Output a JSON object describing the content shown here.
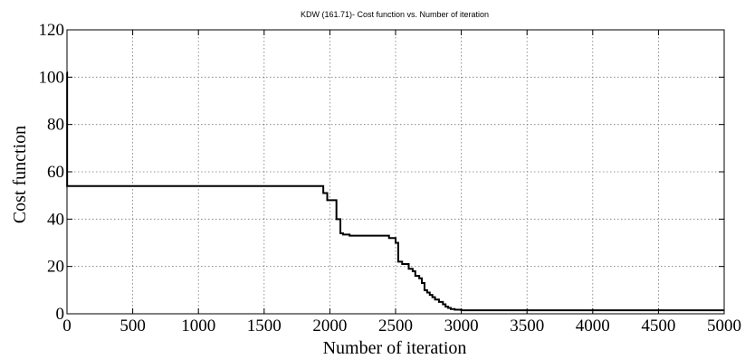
{
  "chart_data": {
    "type": "line",
    "title": "KDW (161.71)- Cost function vs. Number of iteration",
    "xlabel": "Number of iteration",
    "ylabel": "Cost function",
    "xlim": [
      0,
      5000
    ],
    "ylim": [
      0,
      120
    ],
    "xticks": [
      0,
      500,
      1000,
      1500,
      2000,
      2500,
      3000,
      3500,
      4000,
      4500,
      5000
    ],
    "yticks": [
      0,
      20,
      40,
      60,
      80,
      100,
      120
    ],
    "grid": true,
    "step": true,
    "series": [
      {
        "color": "#000000",
        "x": [
          0,
          1,
          1950,
          1980,
          2050,
          2080,
          2100,
          2150,
          2250,
          2350,
          2450,
          2500,
          2520,
          2550,
          2600,
          2630,
          2650,
          2680,
          2700,
          2720,
          2740,
          2760,
          2780,
          2800,
          2830,
          2860,
          2880,
          2900,
          2920,
          2950,
          3000,
          3100,
          5000
        ],
        "y": [
          102,
          54,
          51,
          48,
          40,
          34,
          33.5,
          33,
          33,
          33,
          32,
          30,
          22,
          21,
          19,
          18,
          16,
          15,
          13,
          10,
          9,
          8,
          7,
          6,
          5,
          4,
          3,
          2.5,
          2,
          1.7,
          1.5,
          1.5,
          1.5
        ]
      }
    ]
  }
}
